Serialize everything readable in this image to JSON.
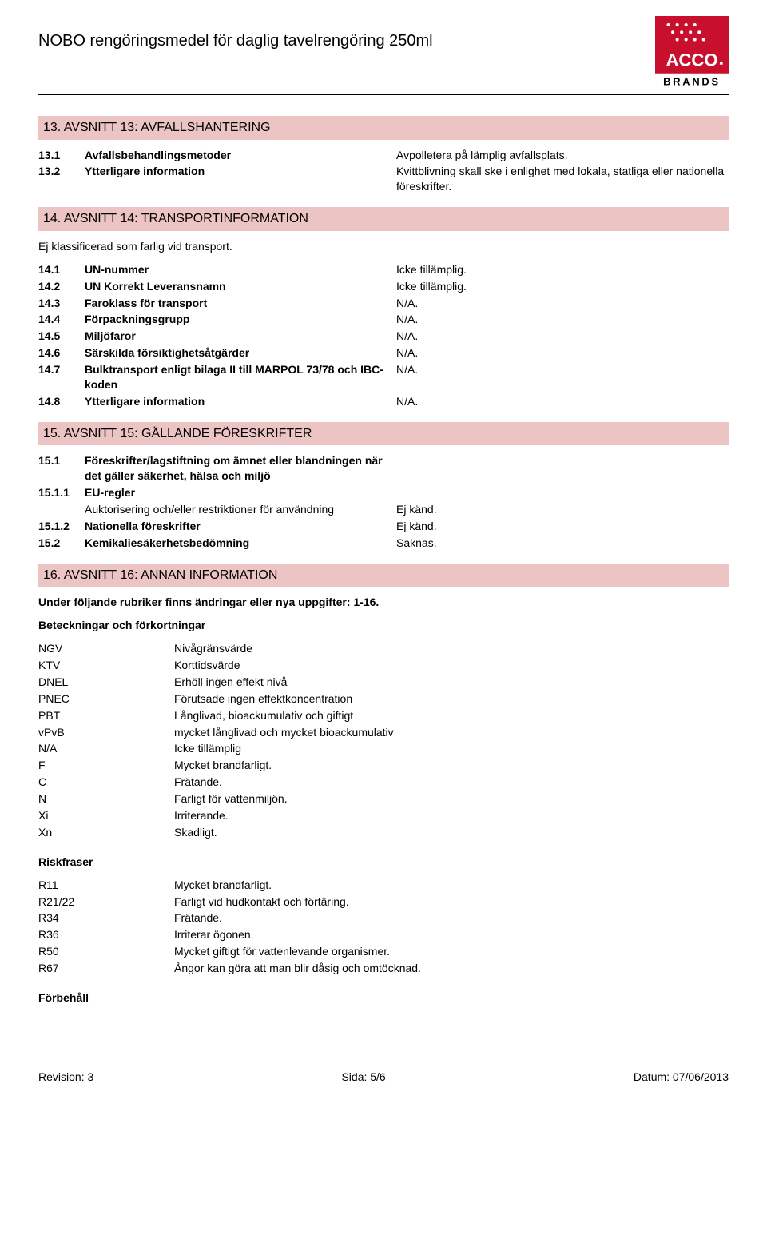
{
  "header": {
    "title": "NOBO rengöringsmedel för daglig tavelrengöring 250ml",
    "logo": {
      "brand_top": "ACCO",
      "brand_bottom": "BRANDS",
      "red": "#c8102e",
      "black": "#000000",
      "white": "#ffffff"
    }
  },
  "style": {
    "section_bg": "#edc4c4",
    "text_color": "#000000",
    "font_size_body": 14,
    "font_size_title": 20,
    "font_size_section": 16
  },
  "s13": {
    "heading": "13. AVSNITT 13: AVFALLSHANTERING",
    "rows": [
      {
        "num": "13.1",
        "label": "Avfallsbehandlingsmetoder",
        "val": "Avpolletera på lämplig avfallsplats.",
        "bold": true
      },
      {
        "num": "13.2",
        "label": "Ytterligare information",
        "val": "Kvittblivning skall ske i enlighet med lokala, statliga eller nationella föreskrifter.",
        "bold": true
      }
    ]
  },
  "s14": {
    "heading": "14. AVSNITT 14: TRANSPORTINFORMATION",
    "note": "Ej klassificerad som farlig vid transport.",
    "rows": [
      {
        "num": "14.1",
        "label": "UN-nummer",
        "val": "Icke tillämplig.",
        "bold": true
      },
      {
        "num": "14.2",
        "label": "UN Korrekt Leveransnamn",
        "val": "Icke tillämplig.",
        "bold": true
      },
      {
        "num": "14.3",
        "label": "Faroklass för transport",
        "val": "N/A.",
        "bold": true
      },
      {
        "num": "14.4",
        "label": "Förpackningsgrupp",
        "val": "N/A.",
        "bold": true
      },
      {
        "num": "14.5",
        "label": "Miljöfaror",
        "val": "N/A.",
        "bold": true
      },
      {
        "num": "14.6",
        "label": "Särskilda försiktighetsåtgärder",
        "val": "N/A.",
        "bold": true
      },
      {
        "num": "14.7",
        "label": "Bulktransport enligt bilaga II till MARPOL 73/78 och IBC-koden",
        "val": "N/A.",
        "bold": true
      },
      {
        "num": "14.8",
        "label": "Ytterligare information",
        "val": "N/A.",
        "bold": true
      }
    ]
  },
  "s15": {
    "heading": "15. AVSNITT 15: GÄLLANDE FÖRESKRIFTER",
    "rows": [
      {
        "num": "15.1",
        "label": "Föreskrifter/lagstiftning om ämnet eller blandningen när det gäller säkerhet, hälsa och miljö",
        "val": "",
        "bold": true
      },
      {
        "num": "15.1.1",
        "label": "EU-regler",
        "val": "",
        "bold": true
      }
    ],
    "sub": {
      "label": "Auktorisering och/eller restriktioner för användning",
      "val": "Ej känd."
    },
    "rows2": [
      {
        "num": "15.1.2",
        "label": "Nationella föreskrifter",
        "val": "Ej känd.",
        "bold": true
      },
      {
        "num": "15.2",
        "label": "Kemikaliesäkerhetsbedömning",
        "val": "Saknas.",
        "bold": true
      }
    ]
  },
  "s16": {
    "heading": "16. AVSNITT 16: ANNAN INFORMATION",
    "note": "Under följande rubriker finns ändringar eller nya uppgifter: 1-16.",
    "abbrev_title": "Beteckningar och förkortningar",
    "abbrev": [
      {
        "k": "NGV",
        "v": "Nivågränsvärde"
      },
      {
        "k": "KTV",
        "v": "Korttidsvärde"
      },
      {
        "k": "DNEL",
        "v": "Erhöll ingen effekt nivå"
      },
      {
        "k": "PNEC",
        "v": "Förutsade ingen effektkoncentration"
      },
      {
        "k": "PBT",
        "v": "Långlivad, bioackumulativ och giftigt"
      },
      {
        "k": "vPvB",
        "v": "mycket långlivad och mycket bioackumulativ"
      },
      {
        "k": "N/A",
        "v": "Icke tillämplig"
      },
      {
        "k": "F",
        "v": "Mycket brandfarligt."
      },
      {
        "k": "C",
        "v": "Frätande."
      },
      {
        "k": "N",
        "v": "Farligt för vattenmiljön."
      },
      {
        "k": "Xi",
        "v": "Irriterande."
      },
      {
        "k": "Xn",
        "v": "Skadligt."
      }
    ],
    "risk_title": "Riskfraser",
    "risk": [
      {
        "k": "R11",
        "v": "Mycket brandfarligt."
      },
      {
        "k": "R21/22",
        "v": "Farligt vid hudkontakt och förtäring."
      },
      {
        "k": "R34",
        "v": "Frätande."
      },
      {
        "k": "R36",
        "v": "Irriterar ögonen."
      },
      {
        "k": "R50",
        "v": "Mycket giftigt för vattenlevande organismer."
      },
      {
        "k": "R67",
        "v": "Ångor kan göra att man blir dåsig och omtöcknad."
      }
    ],
    "reservation_title": "Förbehåll"
  },
  "footer": {
    "left": "Revision: 3",
    "center": "Sida: 5/6",
    "right": "Datum: 07/06/2013"
  }
}
